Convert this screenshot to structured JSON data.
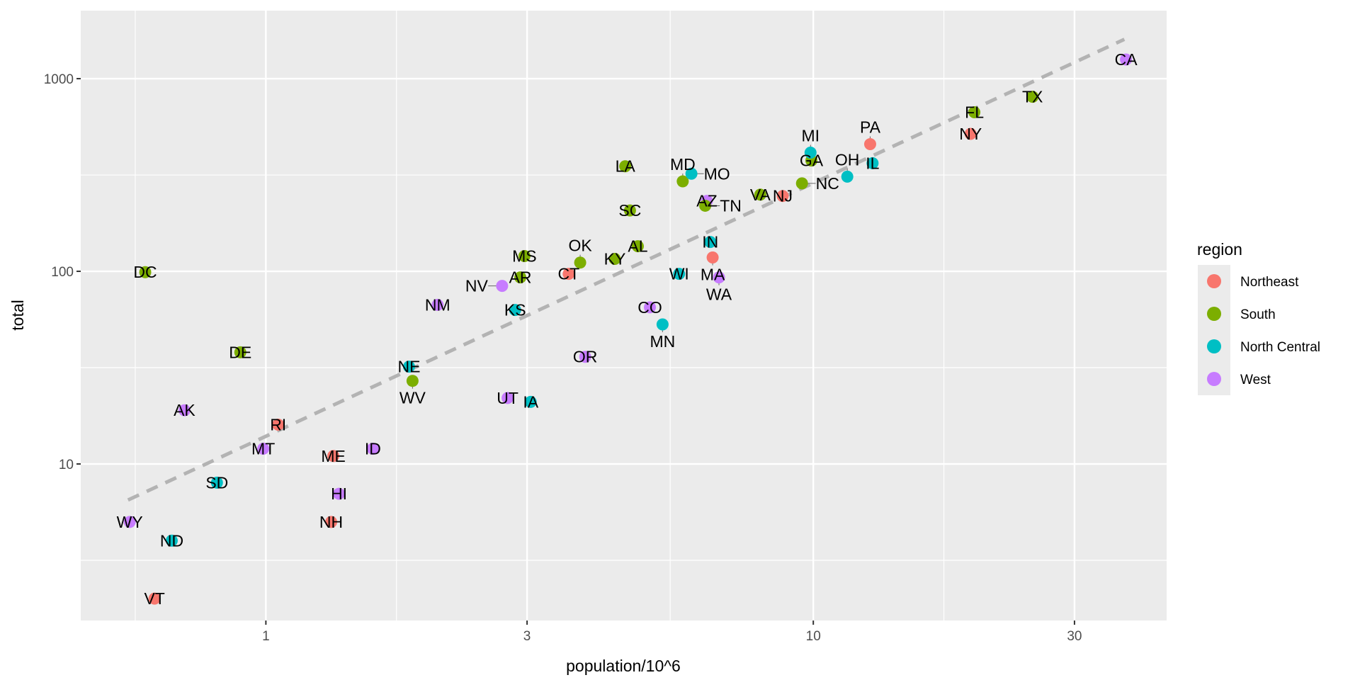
{
  "chart_data": {
    "type": "scatter",
    "title": "",
    "xlabel": "population/10^6",
    "ylabel": "total",
    "x_scale": "log10",
    "y_scale": "log10",
    "xlim": [
      0.459,
      44.2
    ],
    "ylim": [
      1.54,
      2255
    ],
    "x_ticks": [
      {
        "v": 1,
        "label": "1"
      },
      {
        "v": 3,
        "label": "3"
      },
      {
        "v": 10,
        "label": "10"
      },
      {
        "v": 30,
        "label": "30"
      }
    ],
    "y_ticks": [
      {
        "v": 10,
        "label": "10"
      },
      {
        "v": 100,
        "label": "100"
      },
      {
        "v": 1000,
        "label": "1000"
      }
    ],
    "grid": true,
    "legend": {
      "title": "region",
      "placement": "right",
      "entries": [
        {
          "name": "Northeast",
          "color": "#F8766D"
        },
        {
          "name": "South",
          "color": "#7CAE00"
        },
        {
          "name": "North Central",
          "color": "#00BFC4"
        },
        {
          "name": "West",
          "color": "#C77CFF"
        }
      ]
    },
    "reference_line": {
      "style": "dashed",
      "color": "#b3b3b3",
      "from": [
        0.56,
        6.5
      ],
      "to": [
        37,
        1600
      ]
    },
    "points": [
      {
        "abb": "AL",
        "region": "South",
        "x": 4.78,
        "y": 135
      },
      {
        "abb": "AK",
        "region": "West",
        "x": 0.71,
        "y": 19
      },
      {
        "abb": "AZ",
        "region": "West",
        "x": 6.392,
        "y": 232
      },
      {
        "abb": "AR",
        "region": "South",
        "x": 2.916,
        "y": 93
      },
      {
        "abb": "CA",
        "region": "West",
        "x": 37.254,
        "y": 1257
      },
      {
        "abb": "CO",
        "region": "West",
        "x": 5.029,
        "y": 65
      },
      {
        "abb": "CT",
        "region": "Northeast",
        "x": 3.574,
        "y": 97
      },
      {
        "abb": "DE",
        "region": "South",
        "x": 0.898,
        "y": 38
      },
      {
        "abb": "DC",
        "region": "South",
        "x": 0.602,
        "y": 99
      },
      {
        "abb": "FL",
        "region": "South",
        "x": 19.688,
        "y": 669
      },
      {
        "abb": "GA",
        "region": "South",
        "x": 9.92,
        "y": 376
      },
      {
        "abb": "HI",
        "region": "West",
        "x": 1.36,
        "y": 7
      },
      {
        "abb": "ID",
        "region": "West",
        "x": 1.568,
        "y": 12
      },
      {
        "abb": "IL",
        "region": "North Central",
        "x": 12.831,
        "y": 364
      },
      {
        "abb": "IN",
        "region": "North Central",
        "x": 6.484,
        "y": 142
      },
      {
        "abb": "IA",
        "region": "North Central",
        "x": 3.046,
        "y": 21
      },
      {
        "abb": "KS",
        "region": "North Central",
        "x": 2.853,
        "y": 63
      },
      {
        "abb": "KY",
        "region": "South",
        "x": 4.339,
        "y": 116
      },
      {
        "abb": "LA",
        "region": "South",
        "x": 4.533,
        "y": 351
      },
      {
        "abb": "ME",
        "region": "Northeast",
        "x": 1.328,
        "y": 11
      },
      {
        "abb": "MD",
        "region": "South",
        "x": 5.774,
        "y": 293
      },
      {
        "abb": "MA",
        "region": "Northeast",
        "x": 6.548,
        "y": 118
      },
      {
        "abb": "MI",
        "region": "North Central",
        "x": 9.884,
        "y": 413
      },
      {
        "abb": "MN",
        "region": "North Central",
        "x": 5.304,
        "y": 53
      },
      {
        "abb": "MS",
        "region": "South",
        "x": 2.967,
        "y": 120
      },
      {
        "abb": "MO",
        "region": "North Central",
        "x": 5.989,
        "y": 321
      },
      {
        "abb": "MT",
        "region": "West",
        "x": 0.989,
        "y": 12
      },
      {
        "abb": "NE",
        "region": "North Central",
        "x": 1.826,
        "y": 32
      },
      {
        "abb": "NV",
        "region": "West",
        "x": 2.701,
        "y": 84
      },
      {
        "abb": "NH",
        "region": "Northeast",
        "x": 1.316,
        "y": 5
      },
      {
        "abb": "NJ",
        "region": "Northeast",
        "x": 8.792,
        "y": 246
      },
      {
        "abb": "NM",
        "region": "West",
        "x": 2.059,
        "y": 67
      },
      {
        "abb": "NY",
        "region": "Northeast",
        "x": 19.378,
        "y": 517
      },
      {
        "abb": "NC",
        "region": "South",
        "x": 9.535,
        "y": 286
      },
      {
        "abb": "ND",
        "region": "North Central",
        "x": 0.673,
        "y": 4
      },
      {
        "abb": "OH",
        "region": "North Central",
        "x": 11.537,
        "y": 310
      },
      {
        "abb": "OK",
        "region": "South",
        "x": 3.751,
        "y": 111
      },
      {
        "abb": "OR",
        "region": "West",
        "x": 3.831,
        "y": 36
      },
      {
        "abb": "PA",
        "region": "Northeast",
        "x": 12.702,
        "y": 457
      },
      {
        "abb": "RI",
        "region": "Northeast",
        "x": 1.053,
        "y": 16
      },
      {
        "abb": "SC",
        "region": "South",
        "x": 4.625,
        "y": 207
      },
      {
        "abb": "SD",
        "region": "North Central",
        "x": 0.814,
        "y": 8
      },
      {
        "abb": "TN",
        "region": "South",
        "x": 6.346,
        "y": 219
      },
      {
        "abb": "TX",
        "region": "South",
        "x": 25.146,
        "y": 805
      },
      {
        "abb": "UT",
        "region": "West",
        "x": 2.764,
        "y": 22
      },
      {
        "abb": "VT",
        "region": "Northeast",
        "x": 0.626,
        "y": 2
      },
      {
        "abb": "VA",
        "region": "South",
        "x": 8.001,
        "y": 250
      },
      {
        "abb": "WA",
        "region": "West",
        "x": 6.725,
        "y": 93
      },
      {
        "abb": "WV",
        "region": "South",
        "x": 1.853,
        "y": 27
      },
      {
        "abb": "WI",
        "region": "North Central",
        "x": 5.687,
        "y": 97
      },
      {
        "abb": "WY",
        "region": "West",
        "x": 0.564,
        "y": 5
      }
    ]
  }
}
